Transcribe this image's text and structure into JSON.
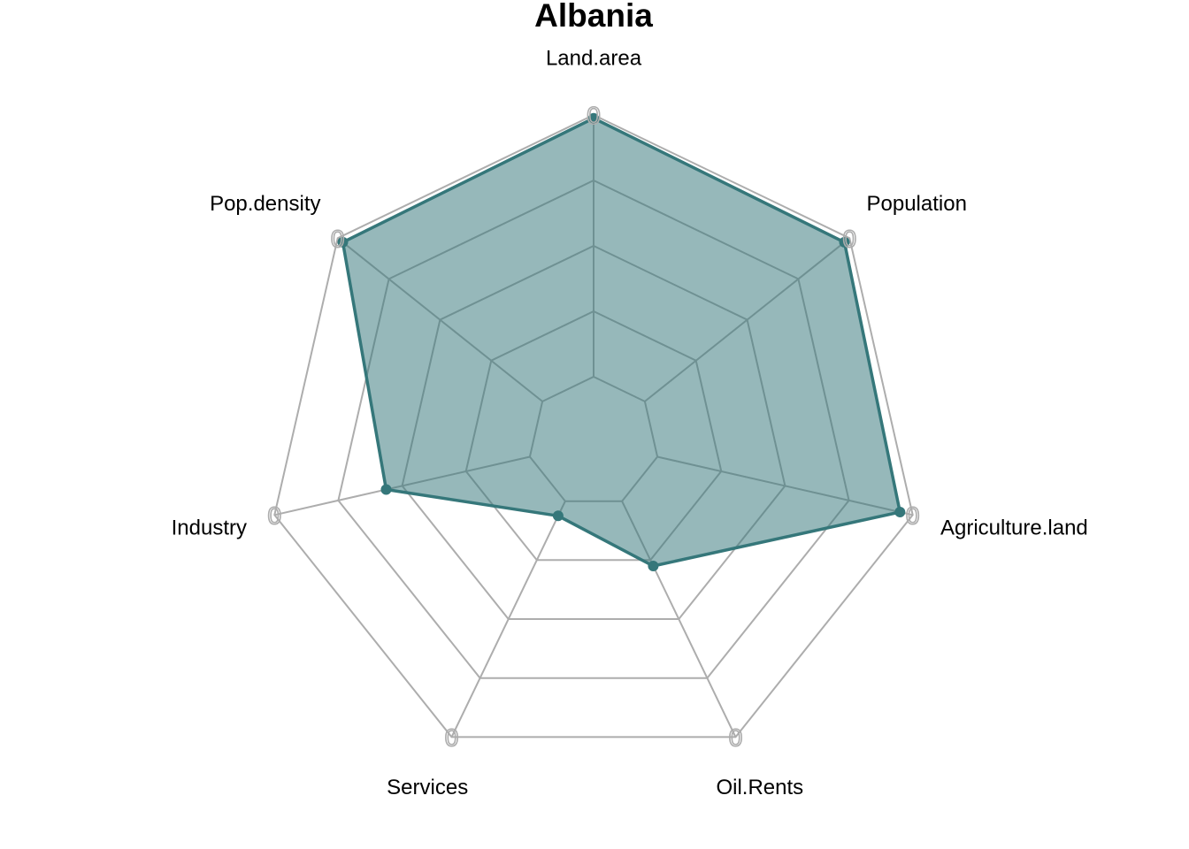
{
  "chart_data": {
    "type": "radar",
    "title": "Albania",
    "axes": [
      "Land.area",
      "Population",
      "Agriculture.land",
      "Oil.Rents",
      "Services",
      "Industry",
      "Pop.density"
    ],
    "axis_range": [
      0,
      1
    ],
    "rings": 5,
    "grid": true,
    "series": [
      {
        "values": [
          0.99,
          0.98,
          0.96,
          0.42,
          0.25,
          0.65,
          0.98
        ]
      }
    ],
    "zero_markers": [
      "0",
      "0",
      "0",
      "0",
      "0",
      "0",
      "0"
    ],
    "colors": {
      "series_line": "#35777a",
      "series_fill": "#35777a",
      "grid": "#adadad",
      "text": "#000000"
    }
  }
}
